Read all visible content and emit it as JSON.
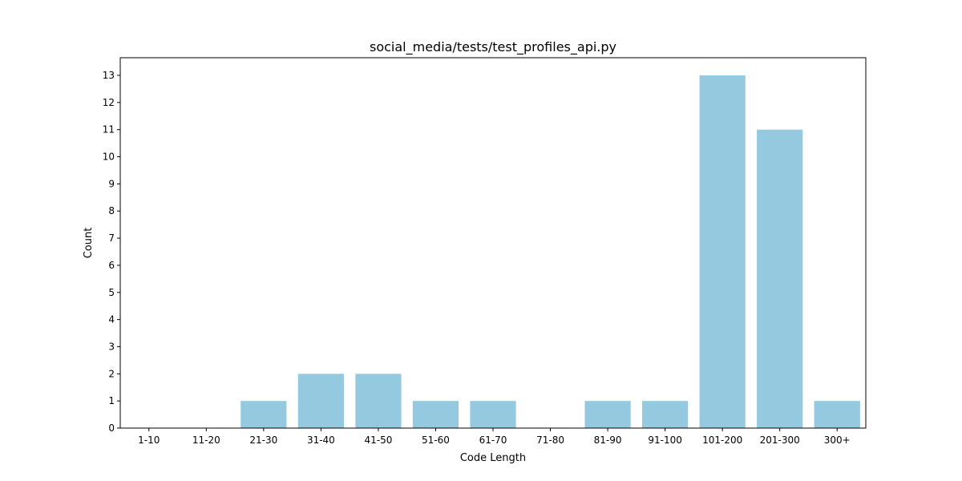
{
  "chart_data": {
    "type": "bar",
    "title": "social_media/tests/test_profiles_api.py",
    "xlabel": "Code Length",
    "ylabel": "Count",
    "categories": [
      "1-10",
      "11-20",
      "21-30",
      "31-40",
      "41-50",
      "51-60",
      "61-70",
      "71-80",
      "81-90",
      "91-100",
      "101-200",
      "201-300",
      "300+"
    ],
    "values": [
      0,
      0,
      1,
      2,
      2,
      1,
      1,
      0,
      1,
      1,
      13,
      11,
      1
    ],
    "ylim": [
      0,
      13.65
    ],
    "yticks": [
      0,
      1,
      2,
      3,
      4,
      5,
      6,
      7,
      8,
      9,
      10,
      11,
      12,
      13
    ],
    "bar_color": "#95c9df",
    "grid": false,
    "legend": "none"
  }
}
